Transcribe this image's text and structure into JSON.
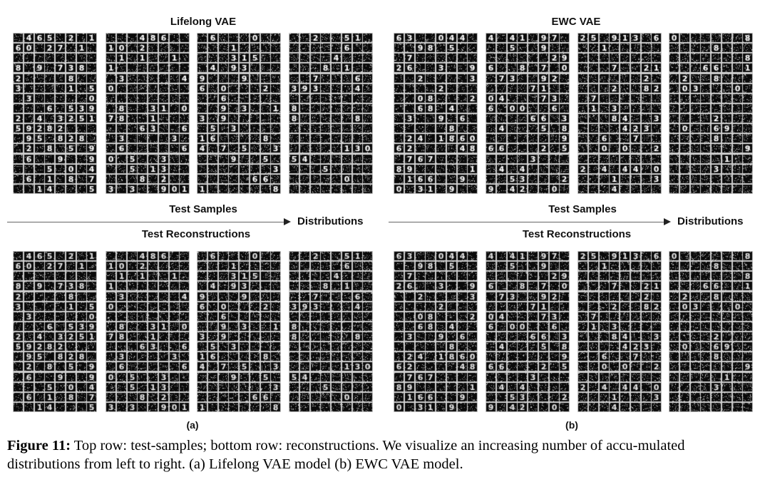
{
  "panels": {
    "left": {
      "title": "Lifelong VAE",
      "sub_label": "(a)"
    },
    "right": {
      "title": "EWC VAE",
      "sub_label": "(b)"
    }
  },
  "rows": {
    "top_label": "Test Samples",
    "bottom_label": "Test Reconstructions",
    "arrow_label": "Distributions"
  },
  "caption": {
    "figure_label": "Figure 11:",
    "text": "Top row: test-samples; bottom row: reconstructions. We visualize an increasing number of accu-mulated distributions from left to right. (a) Lifelong VAE model (b) EWC VAE model."
  },
  "grid_spec": {
    "columns": 8,
    "rows": 16,
    "image_style": "MNIST digits, white on black with noise"
  },
  "colors": {
    "background": "#ffffff",
    "cell_dark": "#0a0a0a",
    "noise": "#8a8a8a"
  }
}
